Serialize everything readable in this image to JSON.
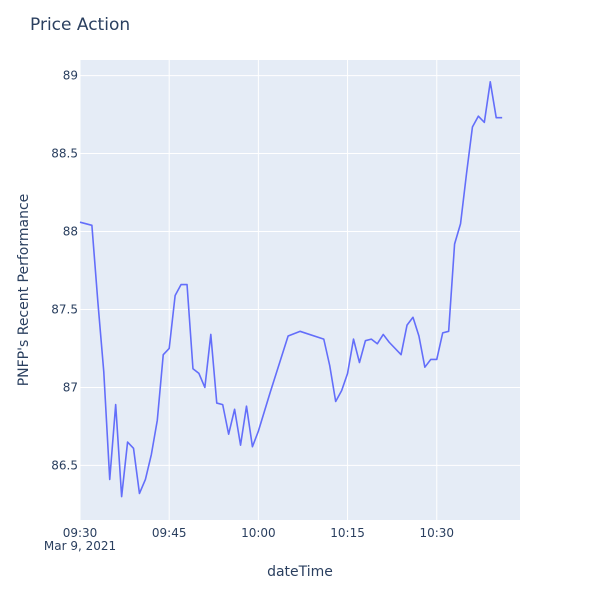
{
  "chart_data": {
    "type": "line",
    "title": "Price Action",
    "xlabel": "dateTime",
    "ylabel": "PNFP's Recent Performance",
    "x_date_label": "Mar 9, 2021",
    "xlim": [
      "09:30",
      "10:44"
    ],
    "ylim": [
      86.15,
      89.1
    ],
    "x_ticks": [
      "09:30",
      "09:45",
      "10:00",
      "10:15",
      "10:30"
    ],
    "y_ticks": [
      86.5,
      87,
      87.5,
      88,
      88.5,
      89
    ],
    "y_tick_labels": [
      "86.5",
      "87",
      "87.5",
      "88",
      "88.5",
      "89"
    ],
    "grid": true,
    "colors": {
      "line": "#636efa",
      "plot_bg": "#e5ecf6",
      "grid": "#ffffff",
      "text": "#2a3f5f"
    },
    "series": [
      {
        "x": [
          "09:30",
          "09:32",
          "09:33",
          "09:34",
          "09:35",
          "09:36",
          "09:37",
          "09:38",
          "09:39",
          "09:40",
          "09:41",
          "09:42",
          "09:43",
          "09:44",
          "09:45",
          "09:46",
          "09:47",
          "09:48",
          "09:49",
          "09:50",
          "09:51",
          "09:52",
          "09:53",
          "09:54",
          "09:55",
          "09:56",
          "09:57",
          "09:58",
          "09:59",
          "10:00",
          "10:02",
          "10:05",
          "10:07",
          "10:11",
          "10:12",
          "10:13",
          "10:14",
          "10:15",
          "10:16",
          "10:17",
          "10:18",
          "10:19",
          "10:20",
          "10:21",
          "10:22",
          "10:24",
          "10:25",
          "10:26",
          "10:27",
          "10:28",
          "10:29",
          "10:30",
          "10:31",
          "10:32",
          "10:33",
          "10:34",
          "10:35",
          "10:36",
          "10:37",
          "10:38",
          "10:39",
          "10:40",
          "10:41"
        ],
        "y": [
          88.06,
          88.04,
          87.55,
          87.1,
          86.41,
          86.89,
          86.3,
          86.65,
          86.61,
          86.32,
          86.41,
          86.57,
          86.79,
          87.21,
          87.25,
          87.59,
          87.66,
          87.66,
          87.12,
          87.09,
          87.0,
          87.34,
          86.9,
          86.89,
          86.7,
          86.86,
          86.63,
          86.88,
          86.62,
          86.72,
          86.97,
          87.33,
          87.36,
          87.31,
          87.14,
          86.91,
          86.98,
          87.09,
          87.31,
          87.16,
          87.3,
          87.31,
          87.28,
          87.34,
          87.29,
          87.21,
          87.4,
          87.45,
          87.33,
          87.13,
          87.18,
          87.18,
          87.35,
          87.36,
          87.92,
          88.05,
          88.37,
          88.67,
          88.74,
          88.7,
          88.96,
          88.73,
          88.73
        ]
      }
    ]
  }
}
